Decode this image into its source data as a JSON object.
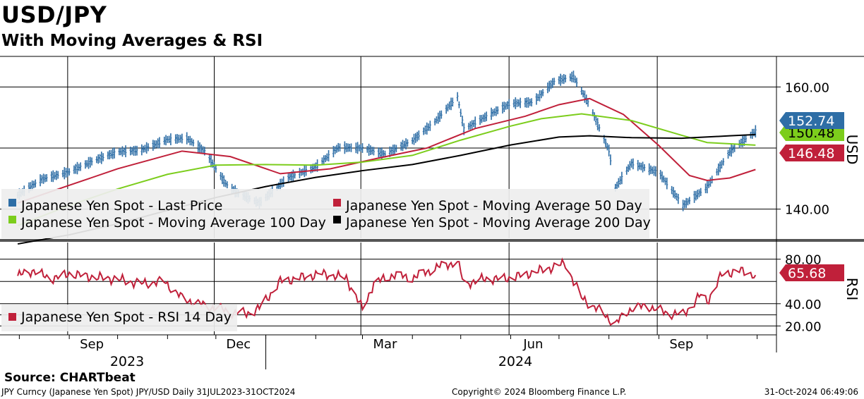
{
  "title": "USD/JPY",
  "subtitle": "With Moving Averages & RSI",
  "source": "Source: CHARTbeat",
  "footer": {
    "left": "JPY Curncy (Japanese Yen Spot) JPY/USD  Daily 31JUL2023-31OCT2024",
    "center": "Copyright© 2024 Bloomberg Finance L.P.",
    "right": "31-Oct-2024 06:49:06"
  },
  "colors": {
    "price": "#2e6ea6",
    "ma50": "#c0203a",
    "ma100": "#7ccd1c",
    "ma200": "#000000",
    "rsi": "#c0203a",
    "legend_bg": "#eeeeee"
  },
  "chart_data": [
    {
      "type": "line",
      "panel": "price",
      "axis_label": "USD",
      "ylim": [
        135,
        165
      ],
      "yticks": [
        "140.00",
        "160.00"
      ],
      "ytick_values": [
        140,
        160
      ],
      "x_month_ticks": [
        "Sep",
        "Dec",
        "Mar",
        "Jun",
        "Sep"
      ],
      "x_year_labels": [
        "2023",
        "2024"
      ],
      "grid": true,
      "legend_position": "bottom-left",
      "last_value_tags": [
        "152.74",
        "150.48",
        "146.48"
      ],
      "series": [
        {
          "name": "Japanese Yen Spot - Last Price",
          "dates": [
            "2023-07-31",
            "2023-08-15",
            "2023-09-01",
            "2023-09-15",
            "2023-10-01",
            "2023-10-15",
            "2023-11-01",
            "2023-11-13",
            "2023-11-24",
            "2023-12-07",
            "2023-12-14",
            "2023-12-28",
            "2024-01-15",
            "2024-02-01",
            "2024-02-15",
            "2024-03-01",
            "2024-03-15",
            "2024-04-01",
            "2024-04-15",
            "2024-04-29",
            "2024-05-03",
            "2024-05-15",
            "2024-06-01",
            "2024-06-15",
            "2024-06-28",
            "2024-07-10",
            "2024-07-20",
            "2024-08-01",
            "2024-08-05",
            "2024-08-15",
            "2024-09-01",
            "2024-09-16",
            "2024-10-01",
            "2024-10-15",
            "2024-10-31"
          ],
          "values": [
            142.3,
            144.9,
            146.1,
            147.8,
            149.4,
            149.6,
            151.4,
            151.6,
            149.5,
            144.2,
            142.7,
            141.0,
            145.2,
            146.9,
            150.1,
            150.0,
            149.0,
            151.2,
            154.3,
            158.4,
            153.1,
            154.9,
            157.3,
            157.5,
            160.9,
            161.7,
            157.0,
            149.6,
            143.5,
            147.5,
            146.0,
            140.6,
            143.6,
            149.4,
            152.74
          ]
        },
        {
          "name": "Japanese Yen Spot - Moving Average 50 Day",
          "dates": [
            "2023-07-31",
            "2023-09-01",
            "2023-10-01",
            "2023-11-10",
            "2023-12-10",
            "2024-01-10",
            "2024-02-10",
            "2024-03-10",
            "2024-04-10",
            "2024-05-10",
            "2024-06-10",
            "2024-07-01",
            "2024-07-20",
            "2024-08-10",
            "2024-09-01",
            "2024-09-20",
            "2024-10-01",
            "2024-10-15",
            "2024-10-31"
          ],
          "values": [
            141.0,
            143.9,
            146.6,
            149.5,
            148.6,
            145.8,
            146.6,
            148.3,
            150.0,
            153.2,
            155.2,
            157.1,
            158.1,
            155.5,
            150.4,
            145.5,
            144.7,
            145.1,
            146.48
          ]
        },
        {
          "name": "Japanese Yen Spot - Moving Average 100 Day",
          "dates": [
            "2023-07-31",
            "2023-09-01",
            "2023-10-01",
            "2023-11-01",
            "2023-12-01",
            "2024-01-01",
            "2024-02-01",
            "2024-03-01",
            "2024-04-01",
            "2024-05-01",
            "2024-06-01",
            "2024-06-20",
            "2024-07-15",
            "2024-08-15",
            "2024-09-15",
            "2024-10-01",
            "2024-10-31"
          ],
          "values": [
            137.3,
            140.6,
            143.3,
            145.7,
            147.2,
            147.3,
            147.2,
            147.7,
            148.8,
            151.3,
            153.6,
            154.8,
            155.6,
            154.5,
            152.1,
            150.9,
            150.48
          ]
        },
        {
          "name": "Japanese Yen Spot - Moving Average 200 Day",
          "dates": [
            "2023-07-31",
            "2023-09-01",
            "2023-10-01",
            "2023-11-01",
            "2023-12-01",
            "2024-01-01",
            "2024-02-01",
            "2024-03-01",
            "2024-04-01",
            "2024-05-01",
            "2024-06-01",
            "2024-07-01",
            "2024-07-20",
            "2024-08-15",
            "2024-09-15",
            "2024-10-15",
            "2024-10-31"
          ],
          "values": [
            134.3,
            135.8,
            137.6,
            139.8,
            141.9,
            143.7,
            145.2,
            146.3,
            147.3,
            148.8,
            150.5,
            151.8,
            152.0,
            151.7,
            151.6,
            152.0,
            152.2
          ]
        }
      ]
    },
    {
      "type": "line",
      "panel": "rsi",
      "axis_label": "RSI",
      "ylim": [
        12,
        95
      ],
      "yticks": [
        "20.00",
        "40.00",
        "80.00"
      ],
      "ytick_values": [
        20,
        40,
        80
      ],
      "grid": true,
      "legend_position": "bottom-left",
      "last_value_tags": [
        "65.68"
      ],
      "series": [
        {
          "name": "Japanese Yen Spot - RSI 14 Day",
          "dates": [
            "2023-07-31",
            "2023-08-10",
            "2023-08-20",
            "2023-09-01",
            "2023-09-15",
            "2023-10-01",
            "2023-10-15",
            "2023-10-30",
            "2023-11-10",
            "2023-11-20",
            "2023-12-01",
            "2023-12-12",
            "2023-12-20",
            "2023-12-28",
            "2024-01-10",
            "2024-01-25",
            "2024-02-05",
            "2024-02-20",
            "2024-03-01",
            "2024-03-08",
            "2024-03-20",
            "2024-04-01",
            "2024-04-15",
            "2024-04-29",
            "2024-05-03",
            "2024-05-15",
            "2024-06-01",
            "2024-06-20",
            "2024-07-05",
            "2024-07-15",
            "2024-07-25",
            "2024-08-05",
            "2024-08-15",
            "2024-08-25",
            "2024-09-05",
            "2024-09-16",
            "2024-09-27",
            "2024-10-01",
            "2024-10-10",
            "2024-10-20",
            "2024-10-31"
          ],
          "values": [
            65,
            70,
            62,
            67,
            64,
            62,
            58,
            60,
            45,
            40,
            36,
            32,
            31,
            36,
            60,
            64,
            67,
            63,
            35,
            58,
            66,
            63,
            72,
            78,
            58,
            62,
            63,
            70,
            76,
            45,
            35,
            22,
            36,
            38,
            32,
            30,
            48,
            42,
            66,
            70,
            65.68
          ]
        }
      ]
    }
  ]
}
